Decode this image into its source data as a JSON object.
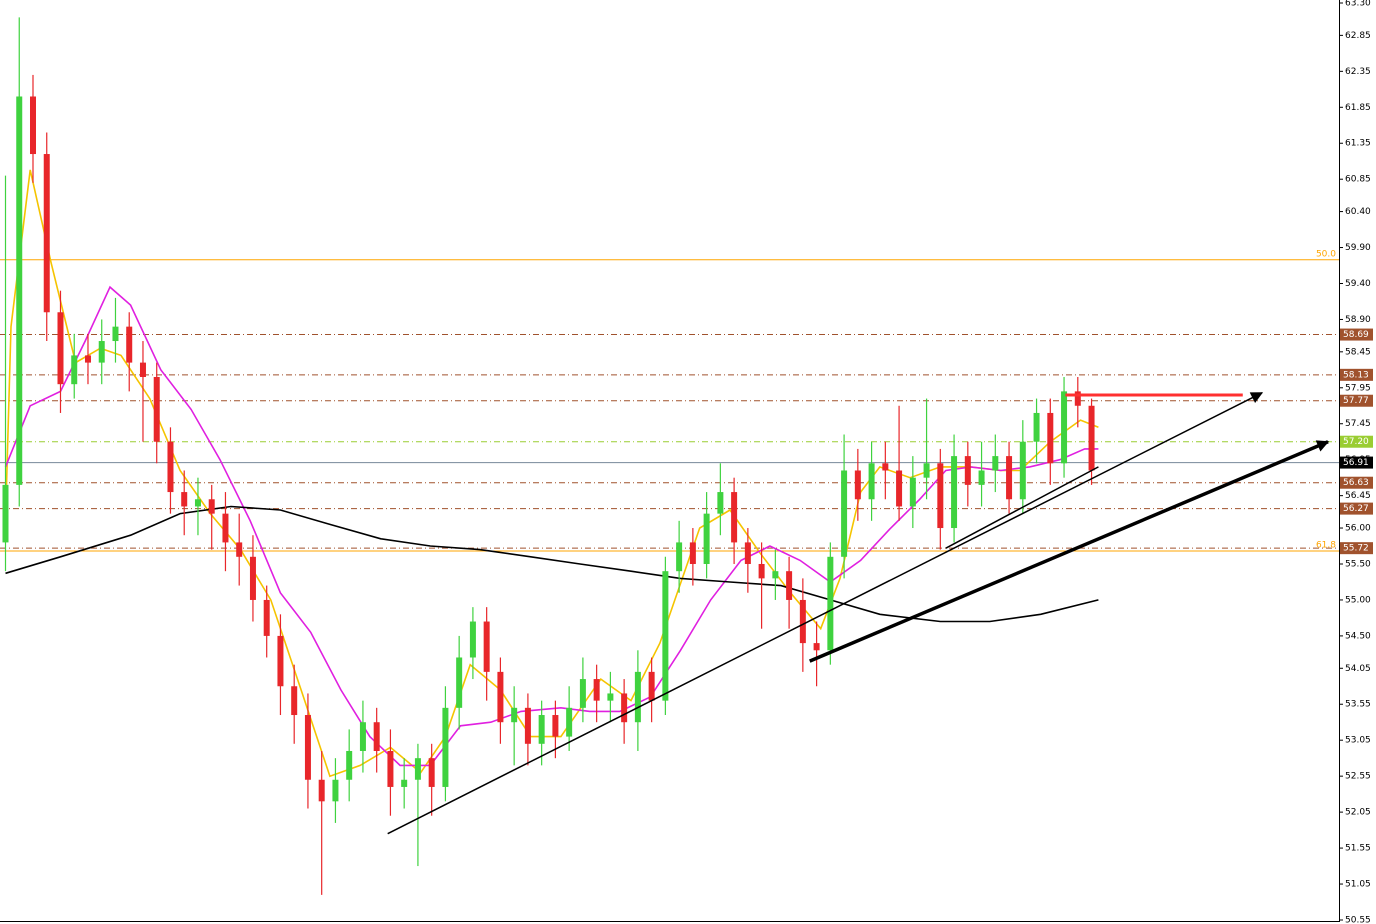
{
  "chart_data": {
    "type": "candlestick",
    "xlim": [
      -0.4,
      97
    ],
    "ylim": [
      50.55,
      63.3
    ],
    "yticks": [
      {
        "value": 63.3,
        "label": "63.30"
      },
      {
        "value": 62.85,
        "label": "62.85"
      },
      {
        "value": 62.35,
        "label": "62.35"
      },
      {
        "value": 61.85,
        "label": "61.85"
      },
      {
        "value": 61.35,
        "label": "61.35"
      },
      {
        "value": 60.85,
        "label": "60.85"
      },
      {
        "value": 60.4,
        "label": "60.40"
      },
      {
        "value": 59.9,
        "label": "59.90"
      },
      {
        "value": 59.4,
        "label": "59.40"
      },
      {
        "value": 58.9,
        "label": "58.90"
      },
      {
        "value": 58.45,
        "label": "58.45"
      },
      {
        "value": 57.95,
        "label": "57.95"
      },
      {
        "value": 57.45,
        "label": "57.45"
      },
      {
        "value": 56.95,
        "label": "56.95"
      },
      {
        "value": 56.45,
        "label": "56.45"
      },
      {
        "value": 56,
        "label": "56.00"
      },
      {
        "value": 55.5,
        "label": "55.50"
      },
      {
        "value": 55,
        "label": "55.00"
      },
      {
        "value": 54.5,
        "label": "54.50"
      },
      {
        "value": 54.05,
        "label": "54.05"
      },
      {
        "value": 53.55,
        "label": "53.55"
      },
      {
        "value": 53.05,
        "label": "53.05"
      },
      {
        "value": 52.55,
        "label": "52.55"
      },
      {
        "value": 52.05,
        "label": "52.05"
      },
      {
        "value": 51.55,
        "label": "51.55"
      },
      {
        "value": 51.05,
        "label": "51.05"
      },
      {
        "value": 50.55,
        "label": "50.55"
      }
    ],
    "up_color": "#3fd23f",
    "down_color": "#e8262a",
    "open": [
      55.8,
      56.6,
      62.0,
      61.2,
      59.0,
      58.0,
      58.4,
      58.3,
      58.6,
      58.8,
      58.3,
      58.1,
      57.2,
      56.5,
      56.3,
      56.4,
      56.2,
      55.8,
      55.6,
      55.0,
      54.5,
      53.8,
      53.4,
      52.5,
      52.2,
      52.5,
      52.9,
      53.3,
      52.9,
      52.4,
      52.5,
      52.8,
      52.4,
      53.5,
      54.2,
      54.7,
      54.0,
      53.3,
      53.5,
      53.0,
      53.4,
      53.1,
      53.5,
      53.9,
      53.6,
      53.7,
      53.3,
      54.0,
      53.6,
      55.4,
      55.8,
      55.5,
      56.2,
      56.5,
      55.8,
      55.5,
      55.3,
      55.4,
      55.0,
      54.4,
      54.3,
      55.6,
      56.8,
      56.4,
      56.9,
      56.8,
      56.3,
      56.7,
      56.9,
      56.0,
      57.0,
      56.6,
      56.8,
      57.0,
      56.4,
      57.2,
      57.6,
      56.9,
      57.9,
      57.7
    ],
    "high": [
      60.9,
      63.1,
      62.3,
      61.5,
      59.3,
      58.7,
      58.7,
      58.9,
      59.2,
      59.0,
      58.6,
      58.3,
      57.4,
      56.8,
      56.7,
      56.6,
      56.5,
      56.2,
      55.9,
      55.2,
      54.8,
      54.1,
      53.7,
      52.9,
      52.8,
      53.2,
      53.6,
      53.5,
      53.2,
      52.8,
      53.0,
      53.0,
      53.8,
      54.5,
      54.9,
      54.9,
      54.2,
      53.8,
      53.7,
      53.6,
      53.6,
      53.8,
      54.2,
      54.1,
      54.0,
      53.9,
      54.3,
      54.2,
      55.6,
      56.1,
      56.0,
      56.5,
      56.9,
      56.7,
      56.0,
      55.8,
      55.7,
      55.6,
      55.3,
      54.7,
      55.8,
      57.3,
      57.1,
      57.2,
      57.2,
      57.7,
      57.0,
      57.8,
      57.1,
      57.3,
      57.2,
      57.2,
      57.3,
      57.2,
      57.5,
      57.8,
      57.8,
      58.1,
      58.1,
      57.8
    ],
    "low": [
      55.4,
      56.3,
      60.8,
      58.6,
      57.6,
      57.8,
      58.0,
      58.0,
      58.3,
      57.9,
      57.2,
      56.9,
      56.2,
      55.9,
      55.9,
      55.7,
      55.4,
      55.2,
      54.7,
      54.2,
      53.4,
      53.0,
      52.1,
      50.9,
      51.9,
      52.2,
      52.6,
      52.6,
      52.0,
      52.1,
      51.3,
      52.0,
      52.2,
      53.2,
      53.9,
      53.6,
      53.0,
      52.7,
      52.7,
      52.7,
      52.8,
      52.9,
      53.3,
      53.3,
      53.3,
      53.0,
      52.9,
      53.3,
      53.4,
      55.1,
      55.2,
      55.3,
      55.9,
      55.5,
      55.1,
      54.6,
      55.0,
      54.6,
      54.0,
      53.8,
      54.1,
      55.3,
      56.1,
      56.1,
      56.4,
      56.1,
      56.0,
      56.4,
      55.7,
      55.8,
      56.3,
      56.3,
      56.5,
      56.2,
      56.2,
      56.9,
      56.6,
      56.7,
      57.4,
      56.6
    ],
    "close": [
      56.6,
      62.0,
      61.2,
      59.0,
      58.0,
      58.4,
      58.3,
      58.6,
      58.8,
      58.3,
      58.1,
      57.2,
      56.5,
      56.3,
      56.4,
      56.2,
      55.8,
      55.6,
      55.0,
      54.5,
      53.8,
      53.4,
      52.5,
      52.2,
      52.5,
      52.9,
      53.3,
      52.9,
      52.4,
      52.5,
      52.8,
      52.4,
      53.5,
      54.2,
      54.7,
      54.0,
      53.3,
      53.5,
      53.0,
      53.4,
      53.1,
      53.5,
      53.9,
      53.6,
      53.7,
      53.3,
      54.0,
      53.6,
      55.4,
      55.8,
      55.5,
      56.2,
      56.5,
      55.8,
      55.5,
      55.3,
      55.4,
      55.0,
      54.4,
      54.3,
      55.6,
      56.8,
      56.4,
      56.9,
      56.8,
      56.3,
      56.7,
      56.9,
      56.0,
      57.0,
      56.6,
      56.8,
      57.0,
      56.4,
      57.2,
      57.6,
      56.9,
      57.9,
      57.7,
      56.8
    ],
    "series": [
      {
        "color": "#f5c400",
        "x": [
          0,
          0.4,
          1.8,
          3.3,
          5.1,
          6.9,
          8.4,
          10.5,
          12.7,
          14.9,
          17.1,
          19.3,
          21.5,
          23.6,
          25.8,
          28,
          30.2,
          32,
          33.8,
          36,
          38.2,
          40.4,
          43.3,
          45.5,
          47.6,
          50.5,
          52.7,
          54.9,
          57.1,
          59.3,
          60.7,
          62.2,
          63.6,
          65.8,
          68,
          70.2,
          72.4,
          73.8,
          76,
          78.2,
          79.5
        ],
        "values": [
          56.1,
          58.8,
          60.98,
          59.7,
          58.3,
          58.5,
          58.4,
          57.8,
          56.8,
          56.2,
          55.7,
          55.0,
          53.75,
          52.55,
          52.7,
          52.95,
          52.6,
          53.1,
          54.1,
          53.75,
          53.1,
          53.1,
          53.9,
          53.6,
          54.4,
          56.0,
          56.25,
          55.65,
          55.1,
          54.6,
          55.3,
          56.5,
          56.85,
          56.7,
          56.85,
          56.85,
          56.8,
          56.8,
          57.2,
          57.5,
          57.4
        ]
      },
      {
        "color": "#e020e0",
        "x": [
          0,
          1.8,
          4,
          5.8,
          7.6,
          9.1,
          11.3,
          13.5,
          15.6,
          17.8,
          20,
          22.2,
          24.4,
          26.5,
          28.7,
          30.9,
          33.1,
          35.3,
          37.5,
          40.4,
          42.5,
          44.7,
          46.9,
          49.1,
          51.3,
          53.5,
          55.6,
          57.8,
          60,
          62.2,
          64.4,
          66.5,
          68.4,
          70.2,
          72.4,
          74.5,
          76.7,
          78.5,
          79.5
        ],
        "values": [
          56.85,
          57.7,
          57.9,
          58.6,
          59.35,
          59.1,
          58.2,
          57.65,
          56.95,
          56.1,
          55.1,
          54.55,
          53.75,
          53.1,
          52.7,
          52.7,
          53.25,
          53.3,
          53.45,
          53.5,
          53.45,
          53.45,
          53.65,
          54.3,
          55.0,
          55.55,
          55.75,
          55.55,
          55.25,
          55.55,
          56.0,
          56.4,
          56.8,
          56.85,
          56.8,
          56.85,
          56.95,
          57.1,
          57.1
        ]
      },
      {
        "color": "#000000",
        "x": [
          0,
          4,
          9.1,
          12.7,
          16.4,
          20,
          23.6,
          27.3,
          30.9,
          34.5,
          38.2,
          41.8,
          45.5,
          49.1,
          52.7,
          56.4,
          60,
          63.6,
          68,
          71.6,
          75.3,
          79.5
        ],
        "values": [
          55.37,
          55.6,
          55.9,
          56.2,
          56.3,
          56.25,
          56.05,
          55.85,
          55.75,
          55.7,
          55.6,
          55.5,
          55.4,
          55.3,
          55.25,
          55.2,
          55.0,
          54.8,
          54.7,
          54.7,
          54.8,
          55.0
        ]
      }
    ],
    "levels": [
      {
        "value": 58.69,
        "color": "#a0522d",
        "tag_color": "#a0522d",
        "style": "dashed"
      },
      {
        "value": 58.13,
        "color": "#a0522d",
        "tag_color": "#a0522d",
        "style": "dashed"
      },
      {
        "value": 57.77,
        "color": "#a0522d",
        "tag_color": "#a0522d",
        "style": "dashed"
      },
      {
        "value": 57.2,
        "label": "57.20",
        "color": "#9acd32",
        "tag_color": "#9acd32",
        "style": "dashed"
      },
      {
        "value": 56.91,
        "color": "#778899",
        "tag_color": "#000000",
        "style": "solid"
      },
      {
        "value": 56.63,
        "color": "#a0522d",
        "tag_color": "#a0522d",
        "style": "dashed"
      },
      {
        "value": 56.27,
        "color": "#a0522d",
        "tag_color": "#a0522d",
        "style": "dashed"
      },
      {
        "value": 55.72,
        "color": "#a0522d",
        "tag_color": "#a0522d",
        "style": "dashed"
      }
    ],
    "fib": [
      {
        "price": 59.73,
        "text": "50.0",
        "color": "#ffa500"
      },
      {
        "price": 55.68,
        "text": "61.8",
        "color": "#ffa500"
      }
    ],
    "trend_lines": [
      {
        "x": [
          27.8,
          91.4
        ],
        "y": [
          51.75,
          57.88
        ],
        "width": 1.5,
        "arrow": true
      },
      {
        "x": [
          58.5,
          96.2
        ],
        "y": [
          54.15,
          57.2
        ],
        "width": 3.5,
        "arrow": true
      },
      {
        "x": [
          68.4,
          79.5
        ],
        "y": [
          55.72,
          56.85
        ],
        "width": 1.5,
        "arrow": false
      }
    ],
    "resistance": {
      "price": 57.85,
      "x": [
        77.1,
        90.0
      ],
      "color": "#ff3030"
    }
  }
}
